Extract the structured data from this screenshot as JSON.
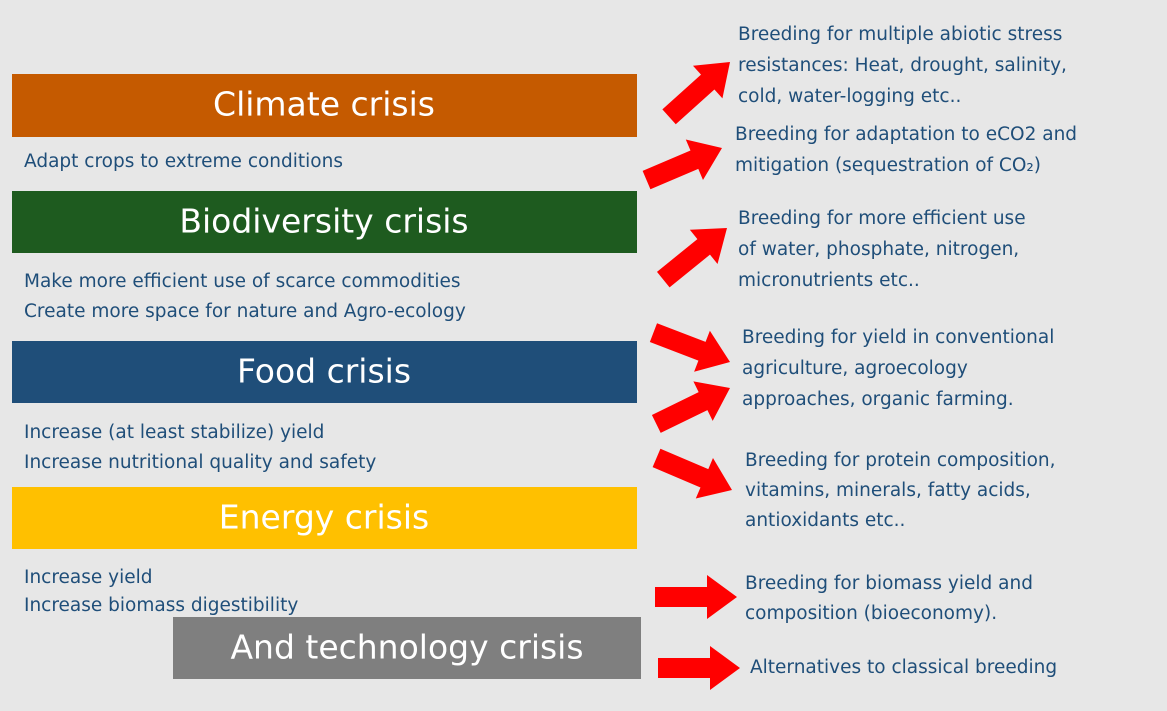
{
  "crises": [
    {
      "title": "Climate crisis",
      "lines": [
        "Adapt crops to extreme conditions"
      ]
    },
    {
      "title": "Biodiversity crisis",
      "lines": [
        "Make more efficient use of scarce commodities",
        "Create more space for nature and Agro-ecology"
      ]
    },
    {
      "title": "Food crisis",
      "lines": [
        "Increase (at least stabilize) yield",
        "Increase nutritional quality and safety"
      ]
    },
    {
      "title": "Energy crisis",
      "lines": [
        "Increase yield",
        "Increase biomass digestibility"
      ]
    },
    {
      "title": "And technology crisis",
      "lines": []
    }
  ],
  "outcomes": [
    [
      "Breeding for multiple abiotic stress",
      "resistances: Heat, drought, salinity,",
      "cold, water-logging etc.."
    ],
    [
      "Breeding for adaptation to eCO2 and",
      "mitigation (sequestration of CO₂)"
    ],
    [
      "Breeding for more efficient use",
      "of water, phosphate, nitrogen,",
      "micronutrients etc.."
    ],
    [
      "Breeding for yield in conventional",
      "agriculture, agroecology",
      "approaches, organic farming."
    ],
    [
      "Breeding for protein composition,",
      "vitamins, minerals, fatty acids,",
      "antioxidants etc.."
    ],
    [
      "Breeding for biomass yield and",
      "composition (bioeconomy)."
    ],
    [
      "Alternatives to classical breeding"
    ]
  ]
}
